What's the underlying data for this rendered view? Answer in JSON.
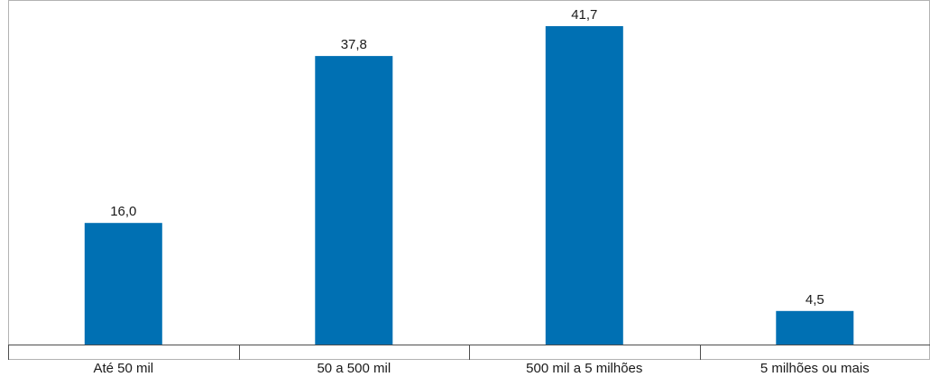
{
  "chart_data": {
    "type": "bar",
    "categories": [
      "Até 50 mil",
      "50 a 500 mil",
      "500 mil a 5 milhões",
      "5 milhões ou mais"
    ],
    "values": [
      16.0,
      37.8,
      41.7,
      4.5
    ],
    "value_labels": [
      "16,0",
      "37,8",
      "41,7",
      "4,5"
    ],
    "title": "",
    "xlabel": "",
    "ylabel": "",
    "ylim": [
      0,
      45
    ],
    "grid": false,
    "legend": "none",
    "bar_color": "#0070b3"
  }
}
